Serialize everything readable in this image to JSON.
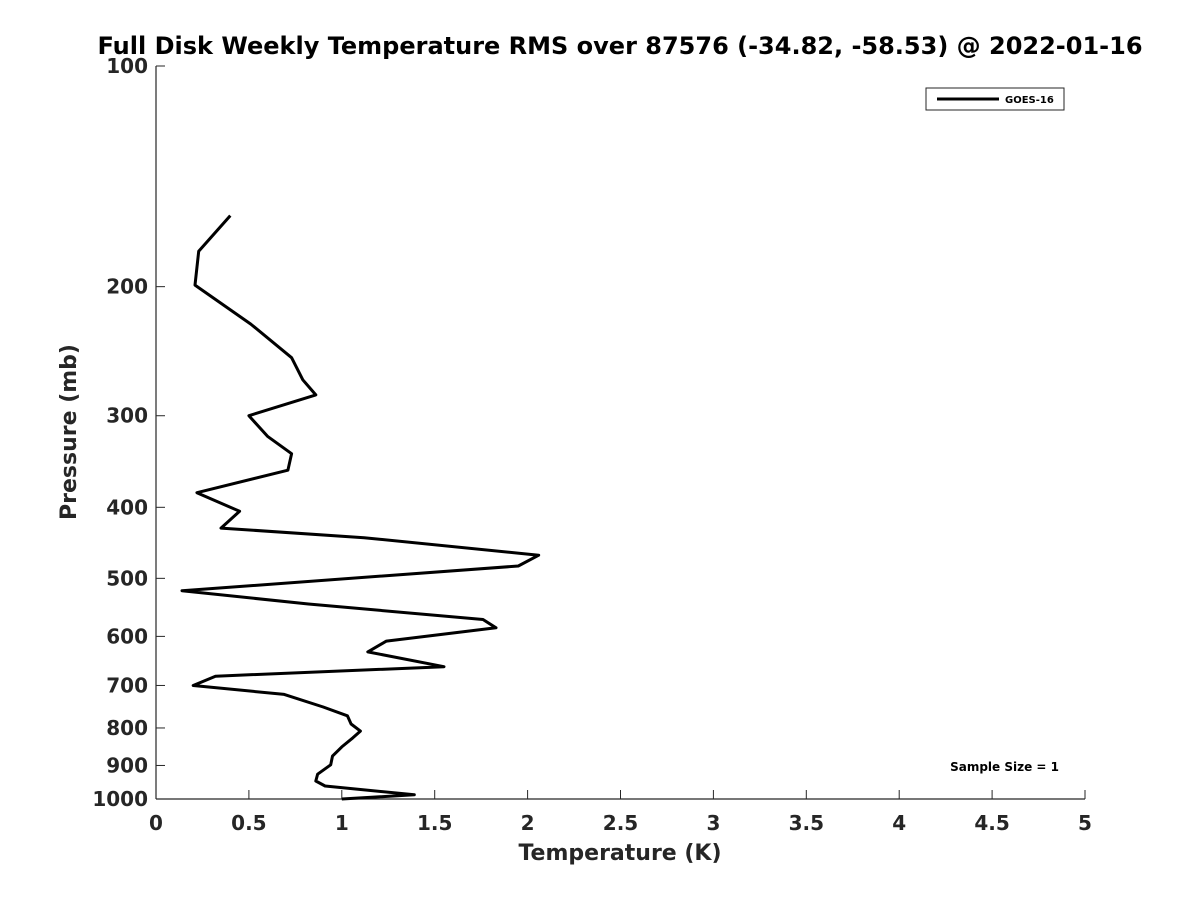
{
  "chart_data": {
    "type": "line",
    "title": "Full Disk Weekly Temperature RMS over 87576 (-34.82, -58.53) @ 2022-01-16",
    "xlabel": "Temperature (K)",
    "ylabel": "Pressure (mb)",
    "xlim": [
      0,
      5
    ],
    "ylim": [
      100,
      1000
    ],
    "y_scale": "log",
    "y_reversed": true,
    "x_ticks": [
      "0",
      "0.5",
      "1",
      "1.5",
      "2",
      "2.5",
      "3",
      "3.5",
      "4",
      "4.5",
      "5"
    ],
    "y_ticks": [
      "100",
      "200",
      "300",
      "400",
      "500",
      "600",
      "700",
      "800",
      "900",
      "1000"
    ],
    "grid": false,
    "legend_position": "top-right",
    "annotation": "Sample Size = 1",
    "series": [
      {
        "name": "GOES-16",
        "color": "#000000",
        "x": [
          0.4,
          0.23,
          0.21,
          0.51,
          0.73,
          0.79,
          0.86,
          0.5,
          0.6,
          0.73,
          0.71,
          0.22,
          0.45,
          0.35,
          1.12,
          2.06,
          1.95,
          0.14,
          0.82,
          1.76,
          1.83,
          1.24,
          1.14,
          1.55,
          0.32,
          0.2,
          0.69,
          0.9,
          1.03,
          1.05,
          1.1,
          1.06,
          1.0,
          0.95,
          0.94,
          0.87,
          0.86,
          0.91,
          1.39,
          1.0
        ],
        "y": [
          160,
          179,
          199,
          225,
          250,
          268,
          281,
          300,
          320,
          338,
          356,
          382,
          405,
          427,
          440,
          465,
          481,
          520,
          542,
          569,
          584,
          609,
          630,
          660,
          680,
          700,
          720,
          749,
          770,
          790,
          808,
          825,
          849,
          874,
          898,
          925,
          945,
          960,
          987,
          1000
        ]
      }
    ]
  }
}
